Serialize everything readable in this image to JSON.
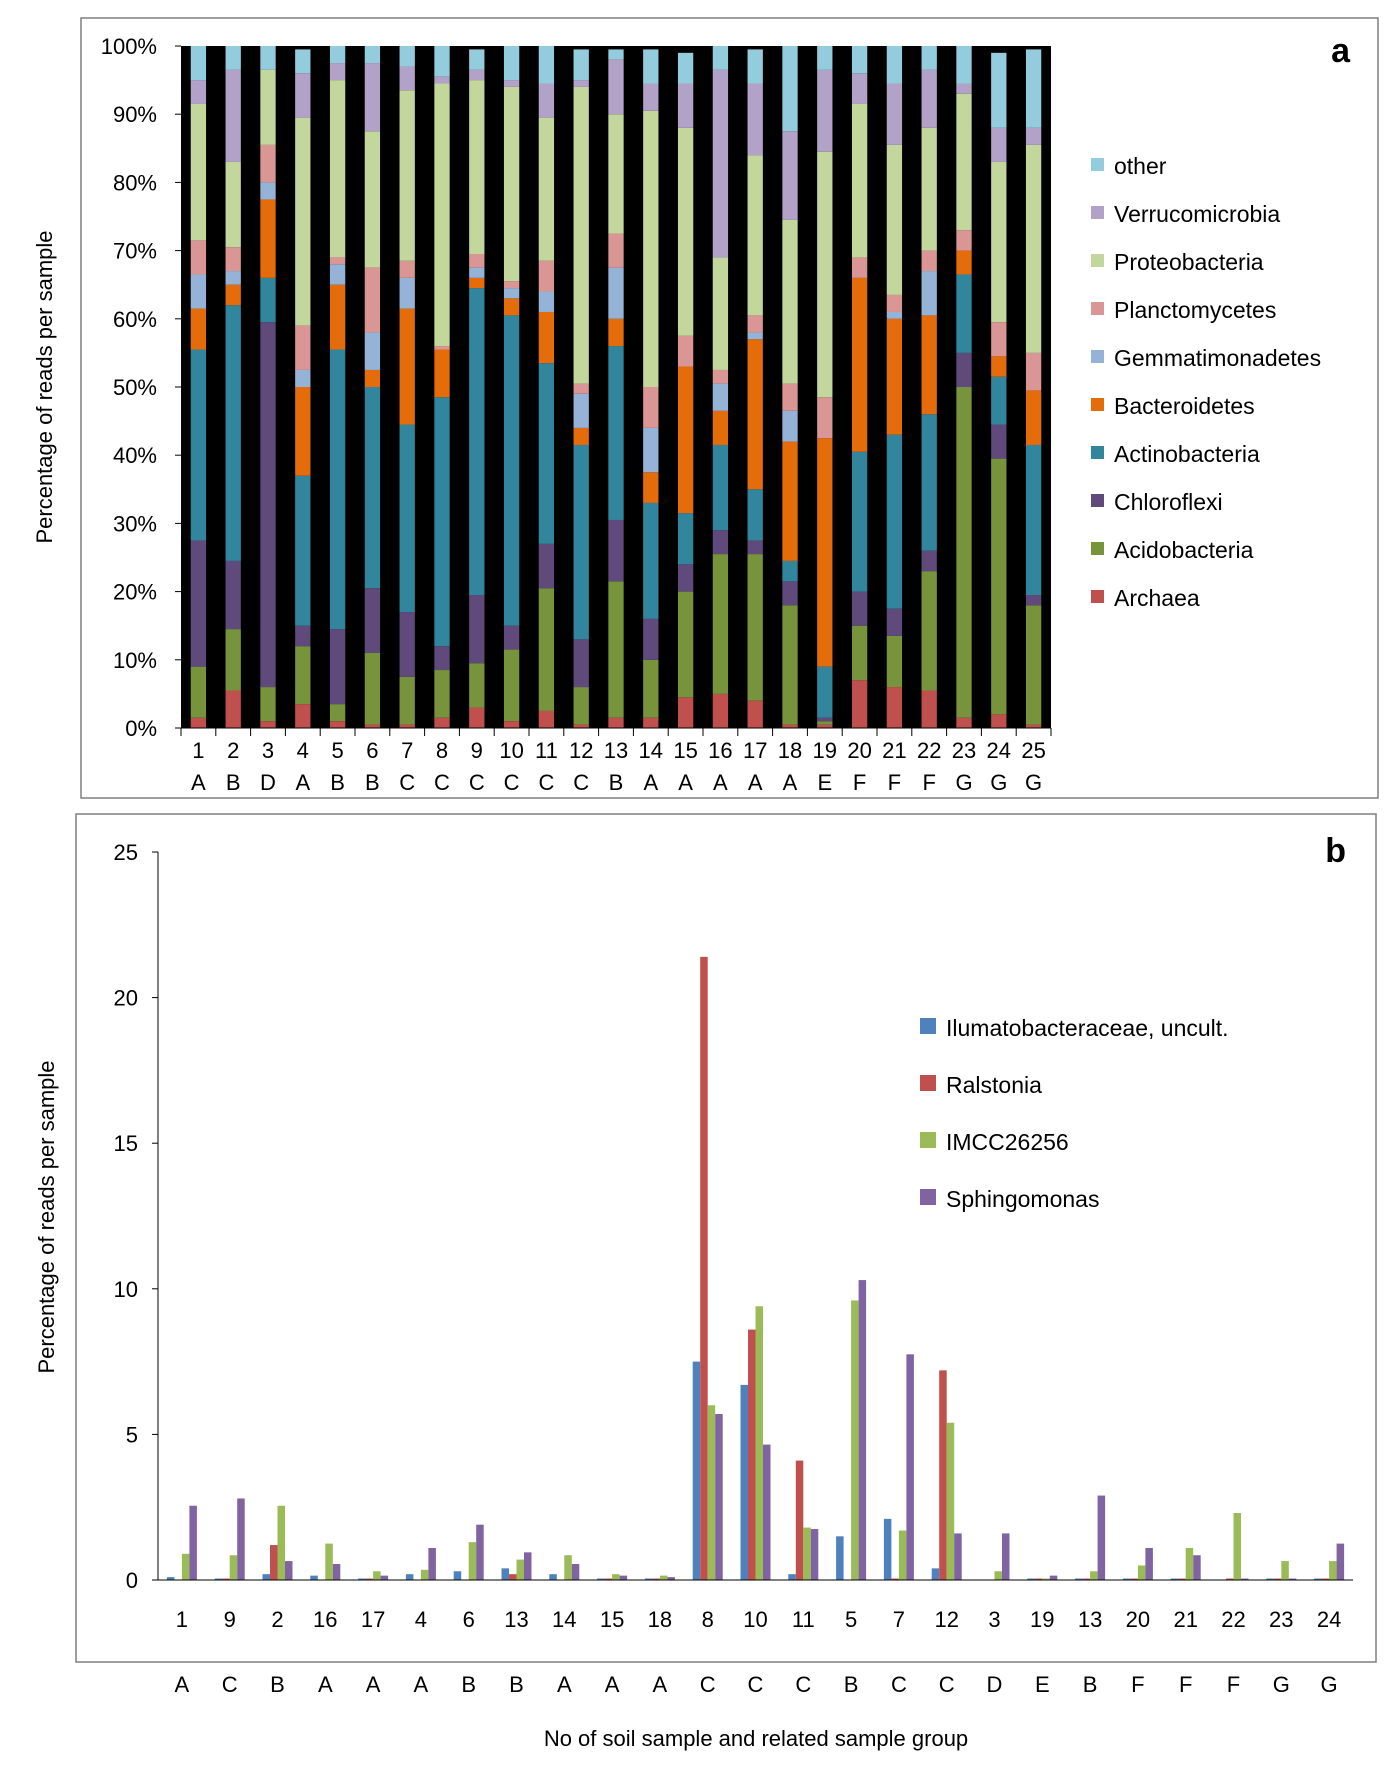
{
  "colors": {
    "Archaea": "#c0504d",
    "Acidobacteria": "#77933c",
    "Chloroflexi": "#604a7b",
    "Actinobacteria": "#31859c",
    "Bacteroidetes": "#e46c0a",
    "Gemmatimonadetes": "#95b3d7",
    "Planctomycetes": "#d99694",
    "Proteobacteria": "#c3d69b",
    "Verrucomicrobia": "#b3a2c7",
    "other": "#93cddd",
    "Ilumatobacteraceae, uncult.": "#4f81bd",
    "Ralstonia": "#c0504d",
    "IMCC26256": "#9bbb59",
    "Sphingomonas": "#8064a2"
  },
  "chart_data": [
    {
      "type": "bar",
      "stacked": true,
      "panel_letter": "a",
      "ylabel": "Percentage of reads per sample",
      "ylim": [
        0,
        100
      ],
      "yticks": [
        "0%",
        "10%",
        "20%",
        "30%",
        "40%",
        "50%",
        "60%",
        "70%",
        "80%",
        "90%",
        "100%"
      ],
      "categories": [
        "1",
        "2",
        "3",
        "4",
        "5",
        "6",
        "7",
        "8",
        "9",
        "10",
        "11",
        "12",
        "13",
        "14",
        "15",
        "16",
        "17",
        "18",
        "19",
        "20",
        "21",
        "22",
        "23",
        "24",
        "25"
      ],
      "groups": [
        "A",
        "B",
        "D",
        "A",
        "B",
        "B",
        "C",
        "C",
        "C",
        "C",
        "C",
        "C",
        "B",
        "A",
        "A",
        "A",
        "A",
        "A",
        "E",
        "F",
        "F",
        "F",
        "G",
        "G",
        "G"
      ],
      "legend_order": [
        "other",
        "Verrucomicrobia",
        "Proteobacteria",
        "Planctomycetes",
        "Gemmatimonadetes",
        "Bacteroidetes",
        "Actinobacteria",
        "Chloroflexi",
        "Acidobacteria",
        "Archaea"
      ],
      "series": [
        {
          "name": "Archaea",
          "values": [
            1.5,
            5.5,
            1,
            3.5,
            1,
            0.5,
            0.5,
            1.5,
            3,
            1,
            2.5,
            0.5,
            1.5,
            1.5,
            4.5,
            5,
            4,
            0.5,
            0.5,
            7,
            6,
            5.5,
            1.5,
            2,
            0.5
          ]
        },
        {
          "name": "Acidobacteria",
          "values": [
            7.5,
            9,
            5,
            8.5,
            2.5,
            10.5,
            7,
            7,
            6.5,
            10.5,
            18,
            5.5,
            20,
            8.5,
            15.5,
            20.5,
            21.5,
            17.5,
            0.5,
            8,
            7.5,
            17.5,
            48.5,
            37.5,
            17.5
          ]
        },
        {
          "name": "Chloroflexi",
          "values": [
            18.5,
            10,
            53.5,
            3,
            11,
            9.5,
            9.5,
            3.5,
            10,
            3.5,
            6.5,
            7,
            9,
            6,
            4,
            3.5,
            2,
            3.5,
            0.5,
            5,
            4,
            3,
            5,
            5,
            1.5
          ]
        },
        {
          "name": "Actinobacteria",
          "values": [
            28,
            37.5,
            6.5,
            22,
            41,
            29.5,
            27.5,
            36.5,
            45,
            45.5,
            26.5,
            28.5,
            25.5,
            17,
            7.5,
            12.5,
            7.5,
            3,
            7.5,
            20.5,
            25.5,
            20,
            11.5,
            7,
            22
          ]
        },
        {
          "name": "Bacteroidetes",
          "values": [
            6,
            3,
            11.5,
            13,
            9.5,
            2.5,
            17,
            7,
            1.5,
            2.5,
            7.5,
            2.5,
            4,
            4.5,
            21.5,
            5,
            22,
            17.5,
            33.5,
            25.5,
            17,
            14.5,
            3.5,
            3,
            8
          ]
        },
        {
          "name": "Gemmatimonadetes",
          "values": [
            5,
            2,
            2.5,
            2.5,
            3,
            5.5,
            4.5,
            0,
            1.5,
            1.5,
            3,
            5,
            7.5,
            6.5,
            0,
            4,
            1,
            4.5,
            0,
            0,
            1,
            6.5,
            0,
            0,
            0
          ]
        },
        {
          "name": "Planctomycetes",
          "values": [
            5,
            3.5,
            5.5,
            6.5,
            1,
            9.5,
            2.5,
            0.5,
            2,
            1,
            4.5,
            1.5,
            5,
            6,
            4.5,
            2,
            2.5,
            4,
            6,
            3,
            2.5,
            3,
            3,
            5,
            5.5
          ]
        },
        {
          "name": "Proteobacteria",
          "values": [
            20,
            12.5,
            11,
            30.5,
            26,
            20,
            25,
            38.5,
            25.5,
            28.5,
            21,
            43.5,
            17.5,
            40.5,
            30.5,
            16.5,
            23.5,
            24,
            36,
            22.5,
            22,
            18,
            20,
            23.5,
            30.5
          ]
        },
        {
          "name": "Verrucomicrobia",
          "values": [
            3.5,
            13.5,
            0,
            6.5,
            2.5,
            10,
            3.5,
            1,
            1.5,
            1,
            5,
            1,
            8,
            4,
            6.5,
            27.5,
            10.5,
            13,
            12,
            4.5,
            9,
            8.5,
            1.5,
            5,
            2.5
          ]
        },
        {
          "name": "other",
          "values": [
            5,
            3.5,
            3.5,
            3.5,
            2.5,
            2.5,
            3,
            4.5,
            3,
            5,
            5.5,
            4.5,
            1.5,
            5,
            4.5,
            3.5,
            5,
            12.5,
            3.5,
            4,
            5.5,
            3.5,
            5.5,
            11,
            11.5
          ]
        }
      ]
    },
    {
      "type": "bar",
      "panel_letter": "b",
      "xlabel": "No of soil sample and related sample group",
      "ylabel": "Percentage of reads per sample",
      "ylim": [
        0,
        25
      ],
      "yticks": [
        "0",
        "5",
        "10",
        "15",
        "20",
        "25"
      ],
      "categories": [
        "1",
        "9",
        "2",
        "16",
        "17",
        "4",
        "6",
        "13",
        "14",
        "15",
        "18",
        "8",
        "10",
        "11",
        "5",
        "7",
        "12",
        "3",
        "19",
        "13",
        "20",
        "21",
        "22",
        "23",
        "24"
      ],
      "groups": [
        "A",
        "C",
        "B",
        "A",
        "A",
        "A",
        "B",
        "B",
        "A",
        "A",
        "A",
        "C",
        "C",
        "C",
        "B",
        "C",
        "C",
        "D",
        "E",
        "B",
        "F",
        "F",
        "F",
        "G",
        "G"
      ],
      "series": [
        {
          "name": "Ilumatobacteraceae, uncult.",
          "values": [
            0.1,
            0.05,
            0.2,
            0.15,
            0.05,
            0.2,
            0.3,
            0.4,
            0.2,
            0.05,
            0.05,
            7.5,
            6.7,
            0.2,
            1.5,
            2.1,
            0.4,
            0,
            0.05,
            0.05,
            0.05,
            0.05,
            0,
            0.05,
            0.05
          ]
        },
        {
          "name": "Ralstonia",
          "values": [
            0,
            0.05,
            1.2,
            0,
            0.05,
            0,
            0,
            0.2,
            0,
            0.05,
            0.05,
            21.4,
            8.6,
            4.1,
            0,
            0.05,
            7.2,
            0,
            0.05,
            0.05,
            0.05,
            0.05,
            0.05,
            0.05,
            0.05
          ]
        },
        {
          "name": "IMCC26256",
          "values": [
            0.9,
            0.85,
            2.55,
            1.25,
            0.3,
            0.35,
            1.3,
            0.7,
            0.85,
            0.2,
            0.15,
            6.0,
            9.4,
            1.8,
            9.6,
            1.7,
            5.4,
            0.3,
            0.05,
            0.3,
            0.5,
            1.1,
            2.3,
            0.65,
            0.65
          ]
        },
        {
          "name": "Sphingomonas",
          "values": [
            2.55,
            2.8,
            0.65,
            0.55,
            0.15,
            1.1,
            1.9,
            0.95,
            0.55,
            0.15,
            0.1,
            5.7,
            4.65,
            1.75,
            10.3,
            7.75,
            1.6,
            1.6,
            0.15,
            2.9,
            1.1,
            0.85,
            0.05,
            0.05,
            1.25
          ]
        }
      ]
    }
  ]
}
